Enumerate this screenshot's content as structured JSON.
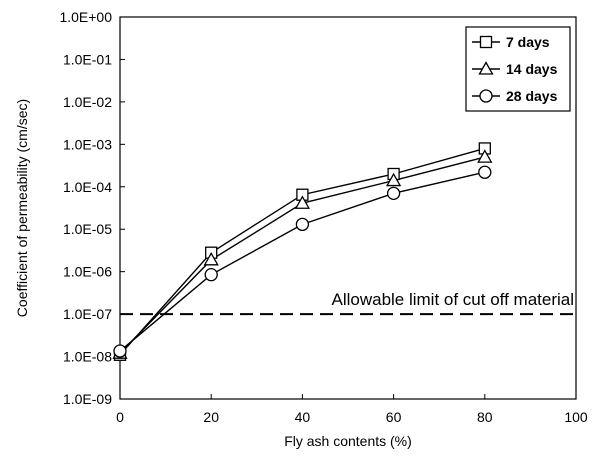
{
  "chart_data": {
    "type": "line",
    "title": "",
    "xlabel": "Fly ash contents (%)",
    "ylabel": "Coefficient of permeability (cm/sec)",
    "xlim": [
      0,
      100
    ],
    "ylim": [
      1e-09,
      1
    ],
    "yscale": "log",
    "x_ticks": [
      0,
      20,
      40,
      60,
      80,
      100
    ],
    "x_tick_labels": [
      "0",
      "20",
      "40",
      "60",
      "80",
      "100"
    ],
    "y_tick_labels": [
      "1.0E-09",
      "1.0E-08",
      "1.0E-07",
      "1.0E-06",
      "1.0E-05",
      "1.0E-04",
      "1.0E-03",
      "1.0E-02",
      "1.0E-01",
      "1.0E+00"
    ],
    "grid": false,
    "legend_position": "top-right",
    "x": [
      0,
      20,
      40,
      60,
      80
    ],
    "series": [
      {
        "name": "7 days",
        "marker": "square",
        "values": [
          1.1e-08,
          2.8e-06,
          6.5e-05,
          0.0002,
          0.0008
        ]
      },
      {
        "name": "14 days",
        "marker": "triangle",
        "values": [
          1.2e-08,
          1.9e-06,
          4.1e-05,
          0.00014,
          0.0005
        ]
      },
      {
        "name": "28 days",
        "marker": "circle",
        "values": [
          1.35e-08,
          8.5e-07,
          1.3e-05,
          7e-05,
          0.00022
        ]
      }
    ],
    "reference_line": {
      "value": 1e-07,
      "style": "dashed",
      "label": "Allowable limit of cut off material"
    },
    "colors": {
      "line": "#000000",
      "marker_fill": "#ffffff",
      "background": "#ffffff"
    }
  }
}
